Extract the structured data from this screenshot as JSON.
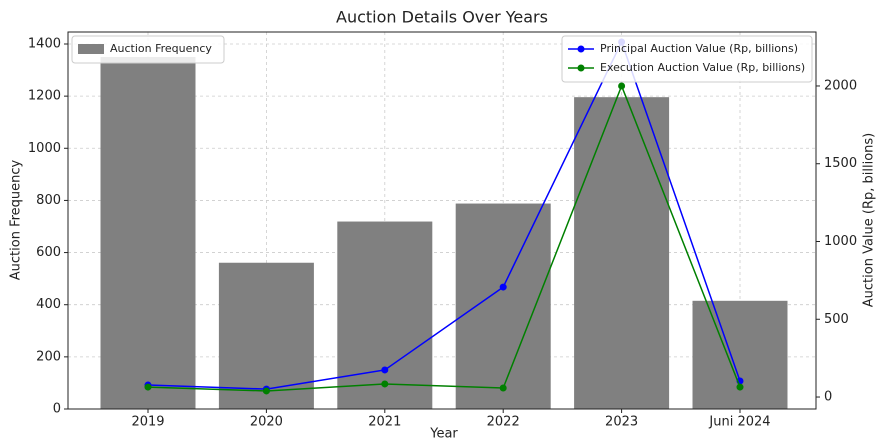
{
  "chart_data": {
    "type": "bar",
    "title": "Auction Details Over Years",
    "x_label": "Year",
    "y_label": "Auction Frequency",
    "y2_label": "Auction Value (Rp, billions)",
    "categories": [
      "2019",
      "2020",
      "2021",
      "2022",
      "2023",
      "Juni 2024"
    ],
    "series": [
      {
        "name": "Auction Frequency",
        "type": "bar",
        "color": "#808080",
        "legend": "upper left",
        "values": [
          1350,
          561,
          719,
          788,
          1196,
          415
        ]
      },
      {
        "name": "Principal Auction Value (Rp, billions)",
        "type": "line",
        "axis": "y2",
        "color": "#0000ff",
        "legend": "upper right",
        "values": [
          77,
          51,
          174,
          707,
          2283,
          103
        ]
      },
      {
        "name": "Execution Auction Value (Rp, billions)",
        "type": "line",
        "axis": "y2",
        "color": "#008000",
        "legend": "upper right",
        "values": [
          64,
          39,
          84,
          58,
          2000,
          64
        ]
      }
    ],
    "ylim": [
      0,
      1446
    ],
    "yticks": [
      0,
      200,
      400,
      600,
      800,
      1000,
      1200,
      1400
    ],
    "y2lim": [
      -77,
      2347
    ],
    "y2ticks": [
      0,
      500,
      1000,
      1500,
      2000
    ],
    "grid": true
  }
}
